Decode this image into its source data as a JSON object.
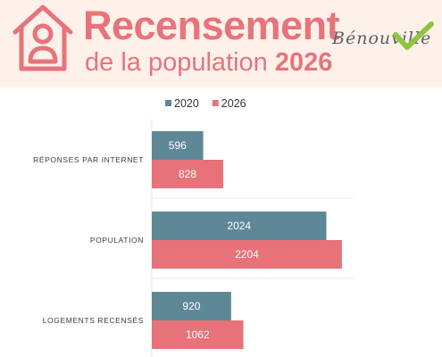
{
  "header": {
    "title": "Recensement",
    "subtitle_prefix": "de la population",
    "subtitle_year": "2026",
    "town_logo_text": "Bénouville",
    "icon": "house-person-icon",
    "accent_color": "#e8737b",
    "background_color": "#fdf1ea",
    "logo_check_color": "#8cc63f"
  },
  "chart_data": {
    "type": "bar",
    "orientation": "horizontal",
    "categories": [
      "RÉPONSES PAR INTERNET",
      "POPULATION",
      "LOGEMENTS RECENSÉS"
    ],
    "series": [
      {
        "name": "2020",
        "color": "#5e8898",
        "values": [
          596,
          2024,
          920
        ]
      },
      {
        "name": "2026",
        "color": "#e8727a",
        "values": [
          828,
          2204,
          1062
        ]
      }
    ],
    "legend": "top",
    "grid": false,
    "xlim": [
      0,
      2350
    ]
  }
}
